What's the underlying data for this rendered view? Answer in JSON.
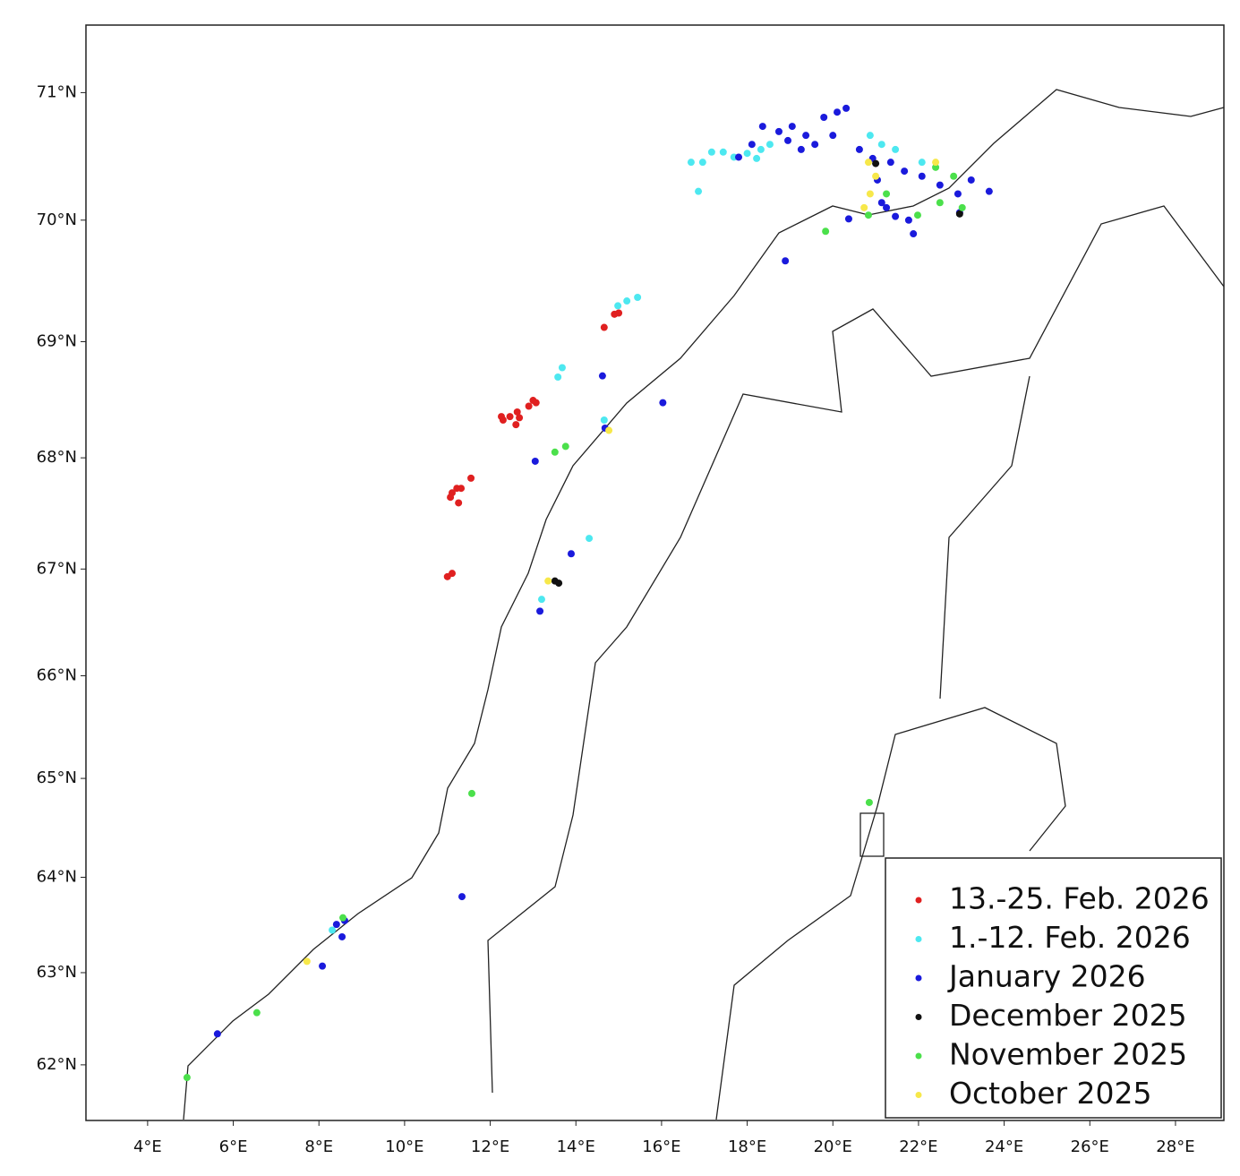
{
  "chart_data": {
    "type": "scatter",
    "projection": "mercator",
    "legend": "lower right",
    "xlim": [
      2.56,
      29.13
    ],
    "ylim": [
      61.38,
      71.51
    ],
    "xticks": [
      {
        "value": 4,
        "label": "4°E"
      },
      {
        "value": 6,
        "label": "6°E"
      },
      {
        "value": 8,
        "label": "8°E"
      },
      {
        "value": 10,
        "label": "10°E"
      },
      {
        "value": 12,
        "label": "12°E"
      },
      {
        "value": 14,
        "label": "14°E"
      },
      {
        "value": 16,
        "label": "16°E"
      },
      {
        "value": 18,
        "label": "18°E"
      },
      {
        "value": 20,
        "label": "20°E"
      },
      {
        "value": 22,
        "label": "22°E"
      },
      {
        "value": 24,
        "label": "24°E"
      },
      {
        "value": 26,
        "label": "26°E"
      },
      {
        "value": 28,
        "label": "28°E"
      }
    ],
    "yticks": [
      {
        "value": 62,
        "label": "62°N"
      },
      {
        "value": 63,
        "label": "63°N"
      },
      {
        "value": 64,
        "label": "64°N"
      },
      {
        "value": 65,
        "label": "65°N"
      },
      {
        "value": 66,
        "label": "66°N"
      },
      {
        "value": 67,
        "label": "67°N"
      },
      {
        "value": 68,
        "label": "68°N"
      },
      {
        "value": 69,
        "label": "69°N"
      },
      {
        "value": 70,
        "label": "70°N"
      },
      {
        "value": 71,
        "label": "71°N"
      }
    ],
    "series": [
      {
        "name": "13.-25. Feb. 2026",
        "color": "#e02020",
        "x": [
          14.9,
          15.0,
          14.66,
          13.0,
          12.9,
          13.07,
          12.63,
          12.46,
          12.68,
          12.26,
          12.3,
          12.6,
          11.11,
          11.22,
          11.32,
          11.55,
          11.26,
          11.07,
          11.0,
          11.11
        ],
        "values": [
          69.23,
          69.24,
          69.12,
          68.5,
          68.45,
          68.48,
          68.4,
          68.36,
          68.35,
          68.36,
          68.33,
          68.29,
          67.69,
          67.73,
          67.73,
          67.82,
          67.6,
          67.65,
          66.93,
          66.96
        ]
      },
      {
        "name": "1.-12. Feb. 2026",
        "color": "#4de8f0",
        "x": [
          16.69,
          16.96,
          17.17,
          17.44,
          16.86,
          17.69,
          18.0,
          18.32,
          18.22,
          18.53,
          20.87,
          21.14,
          21.46,
          22.08,
          15.44,
          15.19,
          14.98,
          13.68,
          13.58,
          14.66,
          14.31,
          13.2,
          8.31
        ],
        "values": [
          70.46,
          70.46,
          70.54,
          70.54,
          70.23,
          70.5,
          70.53,
          70.56,
          70.49,
          70.6,
          70.67,
          70.6,
          70.56,
          70.46,
          69.37,
          69.34,
          69.3,
          68.78,
          68.7,
          68.33,
          67.28,
          66.72,
          63.45
        ]
      },
      {
        "name": "January 2026",
        "color": "#1a1adc",
        "x": [
          17.8,
          18.11,
          18.36,
          18.74,
          19.05,
          19.37,
          19.58,
          19.79,
          20.1,
          20.31,
          20.0,
          18.95,
          19.26,
          20.62,
          20.93,
          21.35,
          21.67,
          22.08,
          22.5,
          22.92,
          23.23,
          23.65,
          21.25,
          21.46,
          21.77,
          21.88,
          21.14,
          21.04,
          20.37,
          22.96,
          18.89,
          14.62,
          16.03,
          13.05,
          14.68,
          13.89,
          13.16,
          8.41,
          8.6,
          8.54,
          8.08,
          11.34,
          5.63
        ],
        "values": [
          70.5,
          70.6,
          70.74,
          70.7,
          70.74,
          70.67,
          70.6,
          70.81,
          70.85,
          70.88,
          70.67,
          70.63,
          70.56,
          70.56,
          70.49,
          70.46,
          70.39,
          70.35,
          70.28,
          70.21,
          70.32,
          70.23,
          70.1,
          70.03,
          70.0,
          69.89,
          70.14,
          70.32,
          70.01,
          70.06,
          69.67,
          68.71,
          68.48,
          67.97,
          68.26,
          67.14,
          66.61,
          63.51,
          63.55,
          63.38,
          63.07,
          63.8,
          62.34
        ]
      },
      {
        "name": "December 2025",
        "color": "#111111",
        "x": [
          13.51,
          13.6,
          21.0,
          22.96
        ],
        "values": [
          66.89,
          66.87,
          70.45,
          70.05
        ]
      },
      {
        "name": "November 2025",
        "color": "#4be04b",
        "x": [
          22.4,
          22.82,
          23.02,
          22.5,
          21.25,
          20.83,
          19.83,
          21.98,
          13.51,
          13.76,
          11.57,
          20.85,
          6.55,
          4.92,
          8.56
        ],
        "values": [
          70.42,
          70.35,
          70.1,
          70.14,
          70.21,
          70.04,
          69.91,
          70.04,
          68.05,
          68.1,
          64.85,
          64.76,
          62.57,
          61.86,
          63.58
        ]
      },
      {
        "name": "October 2025",
        "color": "#f7e84a",
        "x": [
          20.83,
          21.0,
          20.87,
          20.73,
          22.4,
          14.77,
          13.35,
          7.72
        ],
        "values": [
          70.46,
          70.35,
          70.21,
          70.1,
          70.46,
          68.24,
          66.89,
          63.12
        ]
      }
    ]
  }
}
